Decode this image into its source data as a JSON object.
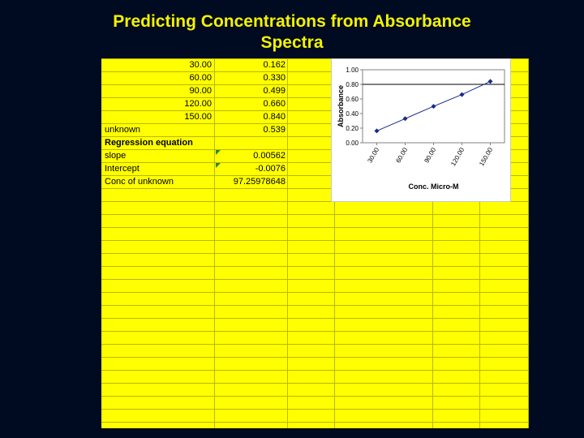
{
  "slide": {
    "title_line1": "Predicting Concentrations from Absorbance",
    "title_line2": "Spectra"
  },
  "sheet": {
    "data_rows": [
      {
        "conc": "30.00",
        "abs": "0.162"
      },
      {
        "conc": "60.00",
        "abs": "0.330"
      },
      {
        "conc": "90.00",
        "abs": "0.499"
      },
      {
        "conc": "120.00",
        "abs": "0.660"
      },
      {
        "conc": "150.00",
        "abs": "0.840"
      }
    ],
    "unknown_label": "unknown",
    "unknown_value": "0.539",
    "regression_label": "Regression equation",
    "slope_label": "slope",
    "slope_value": "0.00562",
    "intercept_label": "Intercept",
    "intercept_value": "-0.0076",
    "conc_label": "Conc of unknown",
    "conc_value": "97.25978648"
  },
  "chart_data": {
    "type": "line",
    "categories": [
      "30.00",
      "60.00",
      "90.00",
      "120.00",
      "150.00"
    ],
    "series": [
      {
        "values": [
          0.162,
          0.33,
          0.499,
          0.66,
          0.84
        ]
      }
    ],
    "xlabel": "Conc. Micro-M",
    "ylabel": "Absorbance",
    "ylim": [
      0,
      1.0
    ],
    "yticks": [
      "0.00",
      "0.20",
      "0.40",
      "0.60",
      "0.80",
      "1.00"
    ],
    "grid": "horizontal line at 0.80",
    "colors": {
      "series": "#1a2a8a",
      "axis": "#808080"
    }
  }
}
